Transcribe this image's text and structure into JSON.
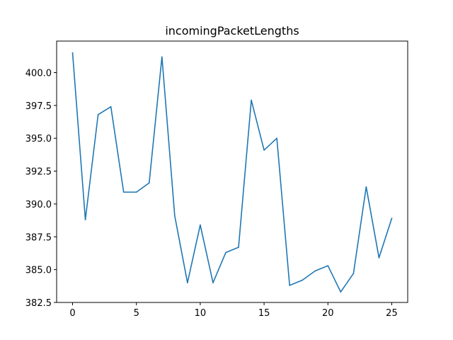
{
  "chart_data": {
    "type": "line",
    "title": "incomingPacketLengths",
    "xlabel": "",
    "ylabel": "",
    "xlim": [
      -1.25,
      26.25
    ],
    "ylim": [
      382.5,
      402.4
    ],
    "x_ticks": [
      0,
      5,
      10,
      15,
      20,
      25
    ],
    "y_ticks": [
      382.5,
      385.0,
      387.5,
      390.0,
      392.5,
      395.0,
      397.5,
      400.0
    ],
    "y_tick_labels": [
      "382.5",
      "385.0",
      "387.5",
      "390.0",
      "392.5",
      "395.0",
      "397.5",
      "400.0"
    ],
    "grid": false,
    "legend": "none",
    "series": [
      {
        "color": "#1f77b4",
        "x": [
          0,
          1,
          2,
          3,
          4,
          5,
          6,
          7,
          8,
          9,
          10,
          11,
          12,
          13,
          14,
          15,
          16,
          17,
          18,
          19,
          20,
          21,
          22,
          23,
          24,
          25
        ],
        "values": [
          401.5,
          388.8,
          396.8,
          397.4,
          390.9,
          390.9,
          391.6,
          401.2,
          389.1,
          384.0,
          388.4,
          384.0,
          386.3,
          386.7,
          397.9,
          394.1,
          395.0,
          383.8,
          384.2,
          384.9,
          385.3,
          383.3,
          384.7,
          391.3,
          385.9,
          388.9
        ]
      }
    ]
  }
}
